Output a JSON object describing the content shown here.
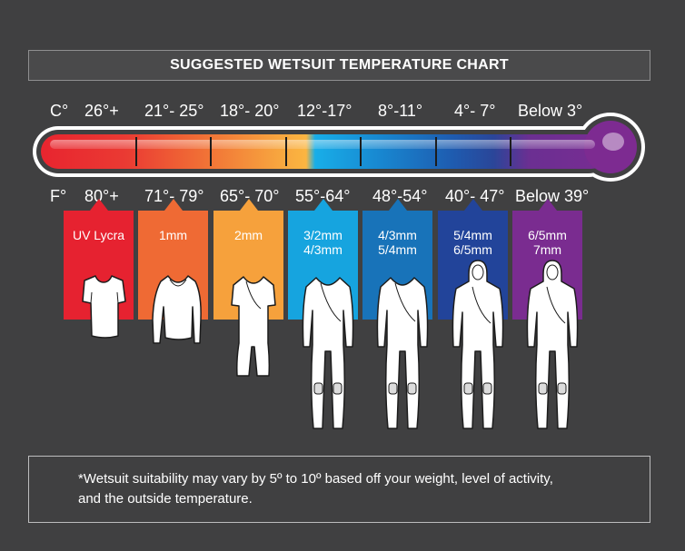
{
  "title": "SUGGESTED WETSUIT TEMPERATURE CHART",
  "celsius": {
    "unit": "C°",
    "ranges": [
      "26°+",
      "21°- 25°",
      "18°- 20°",
      "12°-17°",
      "8°-11°",
      "4°- 7°",
      "Below 3°"
    ]
  },
  "fahrenheit": {
    "unit": "F°",
    "ranges": [
      "80°+",
      "71°- 79°",
      "65°- 70°",
      "55°-64°",
      "48°-54°",
      "40°- 47°",
      "Below 39°"
    ]
  },
  "suits": [
    {
      "label": "UV Lycra",
      "color": "#e62230",
      "type": "shortsleeve-top"
    },
    {
      "label": "1mm",
      "color": "#ef6a34",
      "type": "longsleeve-top"
    },
    {
      "label": "2mm",
      "color": "#f6a13c",
      "type": "shorty"
    },
    {
      "label": "3/2mm\n4/3mm",
      "color": "#16a4df",
      "type": "fullsuit"
    },
    {
      "label": "4/3mm\n5/4mm",
      "color": "#1873b9",
      "type": "fullsuit"
    },
    {
      "label": "5/4mm\n6/5mm",
      "color": "#22449a",
      "type": "hooded-fullsuit"
    },
    {
      "label": "6/5mm\n7mm",
      "color": "#7a2c90",
      "type": "hooded-fullsuit"
    }
  ],
  "note": "*Wetsuit suitability may vary by 5º to 10º based off your weight, level of activity,\nand the outside temperature."
}
